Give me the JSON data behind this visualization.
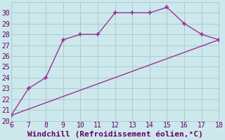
{
  "x": [
    6,
    7,
    8,
    9,
    10,
    11,
    12,
    13,
    14,
    15,
    16,
    17,
    18
  ],
  "y": [
    20.5,
    23.0,
    24.0,
    27.5,
    28.0,
    28.0,
    30.0,
    30.0,
    30.0,
    30.5,
    29.0,
    28.0,
    27.5
  ],
  "line_color": "#993399",
  "marker_color": "#993399",
  "background_color": "#cce8ec",
  "grid_color": "#aacccc",
  "xlabel": "Windchill (Refroidissement éolien,°C)",
  "xlim": [
    6,
    18
  ],
  "ylim": [
    20,
    31
  ],
  "xticks": [
    6,
    7,
    8,
    9,
    10,
    11,
    12,
    13,
    14,
    15,
    16,
    17,
    18
  ],
  "yticks": [
    20,
    21,
    22,
    23,
    24,
    25,
    26,
    27,
    28,
    29,
    30
  ],
  "font_color": "#660066",
  "tick_fontsize": 7,
  "xlabel_fontsize": 8
}
